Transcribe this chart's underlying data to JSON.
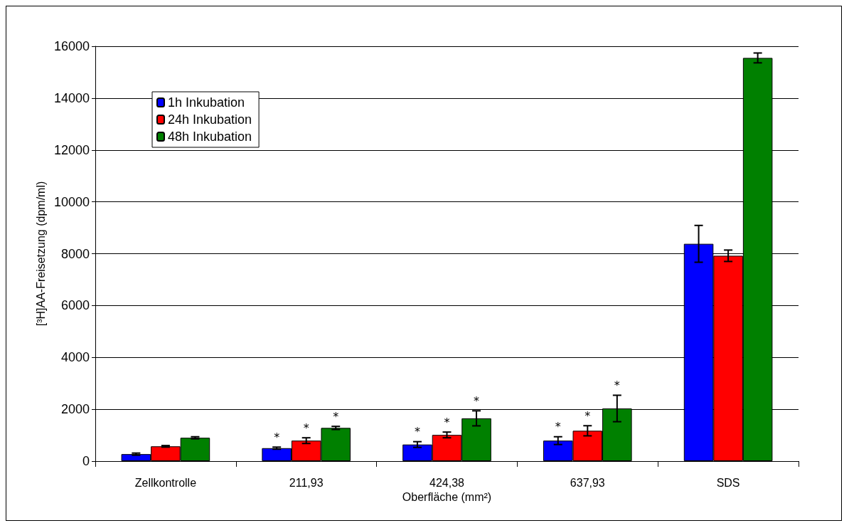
{
  "chart_data": {
    "type": "bar",
    "xlabel": "Oberfläche (mm²)",
    "ylabel": "[³H]AA-Freisetzung (dpm/ml)",
    "categories": [
      "Zellkontrolle",
      "211,93",
      "424,38",
      "637,93",
      "SDS"
    ],
    "series": [
      {
        "name": "1h Inkubation",
        "color": "#0000ff",
        "values": [
          270,
          500,
          640,
          790,
          8380
        ],
        "errors": [
          40,
          40,
          110,
          150,
          710
        ],
        "value_labels": [
          null,
          "*",
          "*",
          "*",
          null
        ]
      },
      {
        "name": "24h Inkubation",
        "color": "#ff0000",
        "values": [
          570,
          790,
          1010,
          1170,
          7920
        ],
        "errors": [
          30,
          110,
          110,
          195,
          220
        ],
        "value_labels": [
          null,
          "*",
          "*",
          "*",
          null
        ]
      },
      {
        "name": "48h Inkubation",
        "color": "#008000",
        "values": [
          900,
          1280,
          1650,
          2030,
          15550
        ],
        "errors": [
          40,
          60,
          290,
          510,
          190
        ],
        "value_labels": [
          null,
          "*",
          "*",
          "*",
          null
        ]
      }
    ],
    "ylim": [
      0,
      16000
    ],
    "yticks": [
      0,
      2000,
      4000,
      6000,
      8000,
      10000,
      12000,
      14000,
      16000
    ],
    "grid": "y",
    "legend": "top left"
  }
}
